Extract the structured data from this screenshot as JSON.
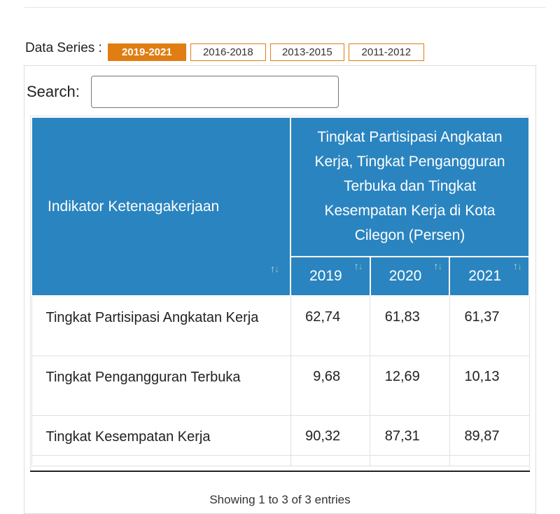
{
  "data_series": {
    "label": "Data Series :",
    "options": [
      "2019-2021",
      "2016-2018",
      "2013-2015",
      "2011-2012"
    ],
    "active": "2019-2021"
  },
  "search": {
    "label": "Search:",
    "value": "",
    "placeholder": ""
  },
  "table": {
    "indicator_header": "Indikator Ketenagakerjaan",
    "group_header": "Tingkat Partisipasi Angkatan Kerja, Tingkat Pengangguran Terbuka dan Tingkat Kesempatan Kerja di Kota Cilegon (Persen)",
    "years": [
      "2019",
      "2020",
      "2021"
    ],
    "rows": [
      {
        "label": "Tingkat Partisipasi Angkatan Kerja",
        "values": [
          "62,74",
          "61,83",
          "61,37"
        ]
      },
      {
        "label": "Tingkat Pengangguran Terbuka",
        "values": [
          "9,68",
          "12,69",
          "10,13"
        ]
      },
      {
        "label": "Tingkat Kesempatan Kerja",
        "values": [
          "90,32",
          "87,31",
          "89,87"
        ]
      }
    ]
  },
  "info": "Showing 1 to 3 of 3 entries",
  "colors": {
    "accent_orange": "#e07d13",
    "header_blue": "#2a84c0"
  },
  "icons": {
    "sort": "sort-arrows-icon"
  }
}
